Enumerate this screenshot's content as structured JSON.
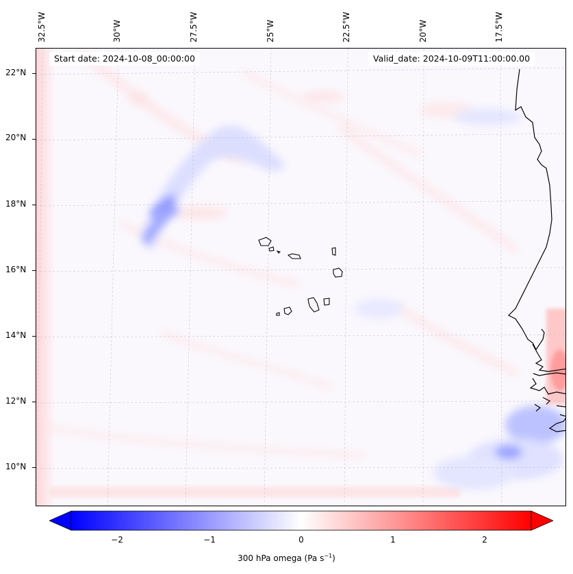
{
  "header": {
    "start_date": "Start date: 2024-10-08_00:00:00",
    "valid_date": "Valid_date: 2024-10-09T11:00:00.00"
  },
  "axes": {
    "lon_labels": [
      "32.5°W",
      "30°W",
      "27.5°W",
      "25°W",
      "22.5°W",
      "20°W",
      "17.5°W"
    ],
    "lat_labels": [
      "22°N",
      "20°N",
      "18°N",
      "16°N",
      "14°N",
      "12°N",
      "10°N"
    ]
  },
  "colorbar": {
    "ticks": [
      "−2",
      "−1",
      "0",
      "1",
      "2"
    ],
    "tick_values": [
      -2,
      -1,
      0,
      1,
      2
    ],
    "range": [
      -2.5,
      2.5
    ],
    "label_main": "300 hPa omega (Pa s",
    "label_sup": "−1",
    "label_end": ")",
    "neg_color": "#0000ff",
    "zero_color": "#ffffff",
    "pos_color": "#ff0000"
  },
  "map": {
    "variable": "omega",
    "level": "300 hPa",
    "coast_color": "#000000",
    "grid_color": "#b0b0b0"
  }
}
